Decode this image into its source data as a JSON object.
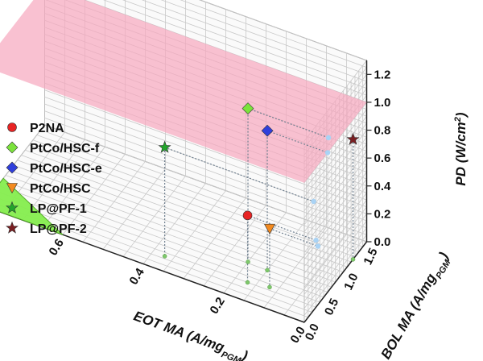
{
  "chart_data": {
    "type": "scatter3d",
    "axes": {
      "x": {
        "label": "EOT MA (A/mg",
        "label_sub": "PGM",
        "label_end": ")",
        "ticks": [
          "0.0",
          "0.2",
          "0.4",
          "0.6"
        ],
        "range": [
          0,
          0.8
        ]
      },
      "y": {
        "label": "BOL MA (A/mg",
        "label_sub": "PGM",
        "label_end": ")",
        "ticks": [
          "0.0",
          "0.5",
          "1.0",
          "1.5"
        ],
        "range": [
          0,
          1.6
        ]
      },
      "z": {
        "label": "PD (W/cm",
        "label_sup": "2",
        "label_end": ")",
        "ticks": [
          "0.0",
          "0.2",
          "0.4",
          "0.6",
          "0.8",
          "1.0",
          "1.2"
        ],
        "range": [
          0,
          1.3
        ]
      }
    },
    "target_plane": {
      "pd": 1.0,
      "color": "#f7a6bd"
    },
    "target_region": {
      "eot_ma": 0.6,
      "bol_ma": 0.0,
      "color": "#86ee4f",
      "description": "EOT MA vs BOL MA triangle"
    },
    "series": [
      {
        "name": "P2NA",
        "marker": "circle",
        "color": "#e82424",
        "eot_ma": 0.17,
        "bol_ma": 0.3,
        "pd": 0.48
      },
      {
        "name": "PtCo/HSC-f",
        "marker": "diamond",
        "color": "#7be33c",
        "eot_ma": 0.2,
        "bol_ma": 0.62,
        "pd": 1.1
      },
      {
        "name": "PtCo/HSC-e",
        "marker": "diamond",
        "color": "#2f3fdc",
        "eot_ma": 0.15,
        "bol_ma": 0.6,
        "pd": 1.0
      },
      {
        "name": "PtCo/HSC",
        "marker": "triangle-down",
        "color": "#f38a1f",
        "eot_ma": 0.12,
        "bol_ma": 0.35,
        "pd": 0.42
      },
      {
        "name": "LP@PF-1",
        "marker": "star",
        "color": "#22a52b",
        "eot_ma": 0.37,
        "bol_ma": 0.24,
        "pd": 0.78
      },
      {
        "name": "LP@PF-2",
        "marker": "star",
        "color": "#7a1e22",
        "eot_ma": 0.0,
        "bol_ma": 1.25,
        "pd": 0.86
      }
    ]
  }
}
